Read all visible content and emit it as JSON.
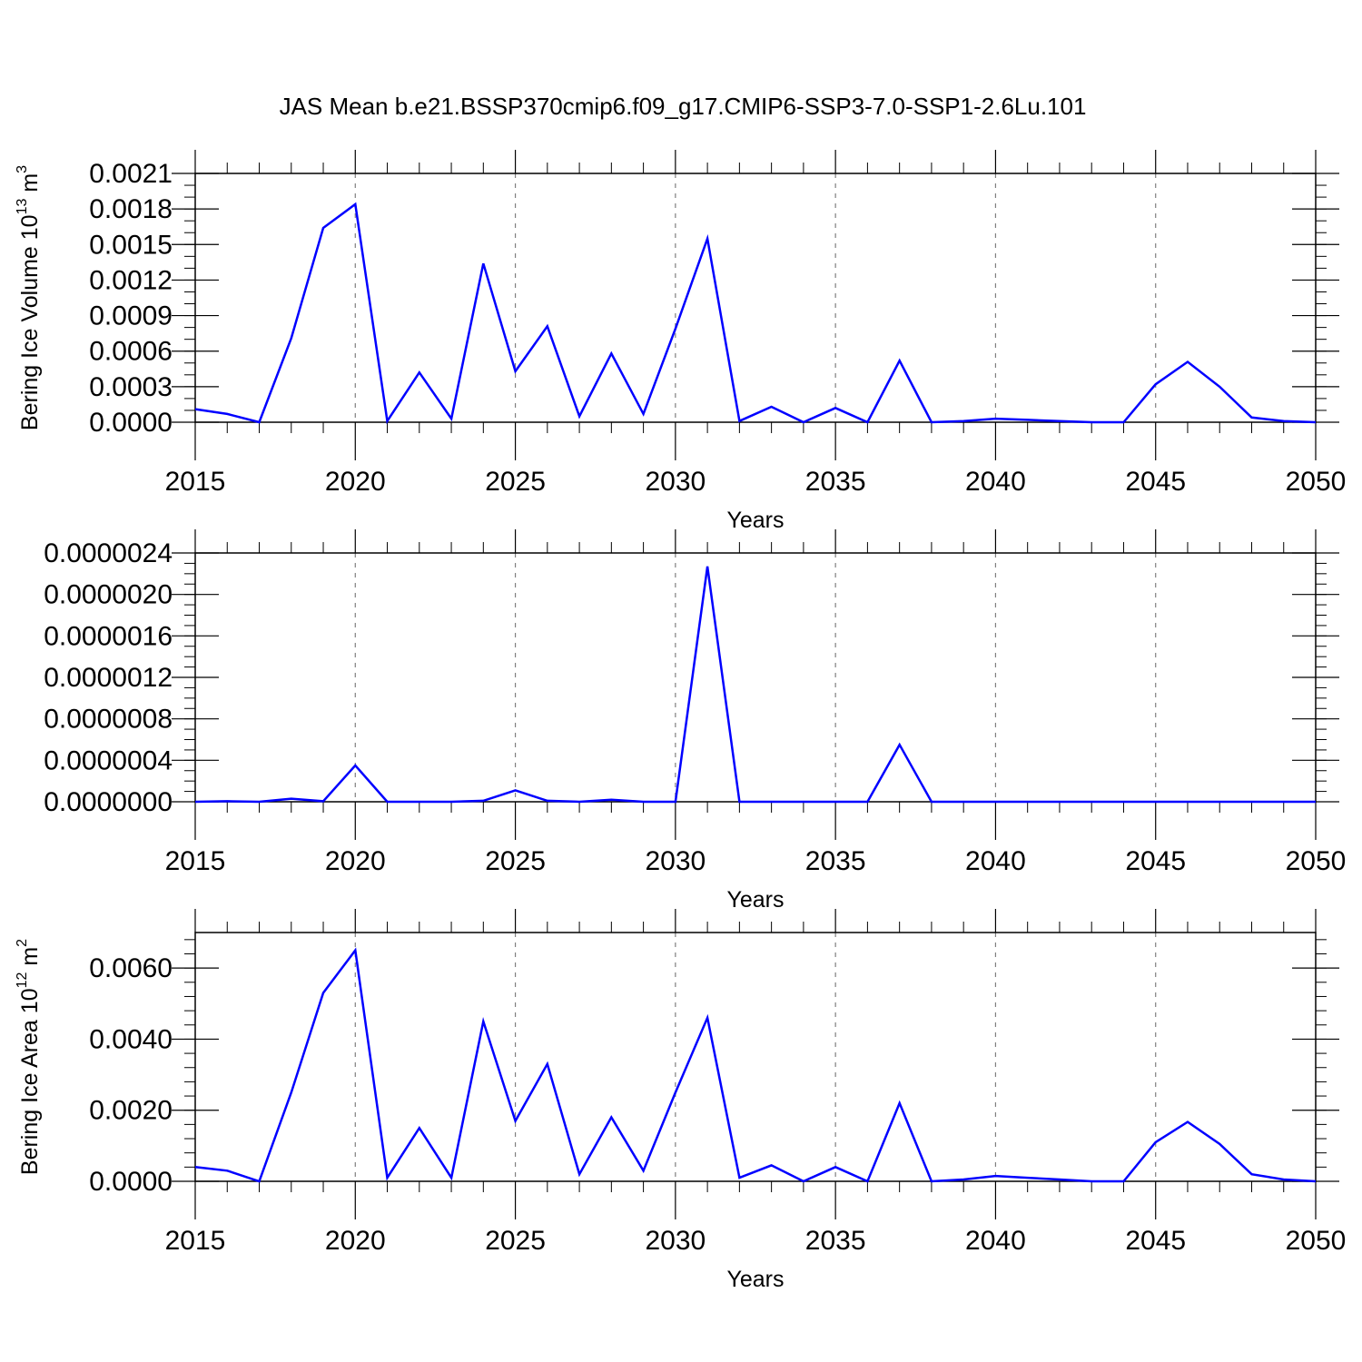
{
  "title": "JAS Mean b.e21.BSSP370cmip6.f09_g17.CMIP6-SSP3-7.0-SSP1-2.6Lu.101",
  "colors": {
    "line": "#0000ff",
    "frame": "#000000",
    "grid": "#808080"
  },
  "chart_data": [
    {
      "type": "line",
      "xlabel": "Years",
      "ylabel": {
        "text": "Bering Ice Volume 10",
        "sup": "13",
        "unit": " m",
        "unit_sup": "3"
      },
      "xlim": [
        2015,
        2050
      ],
      "ylim": [
        0,
        0.0021
      ],
      "x_ticks": [
        "2015",
        "2020",
        "2025",
        "2030",
        "2035",
        "2040",
        "2045",
        "2050"
      ],
      "y_ticks": [
        "0.0000",
        "0.0003",
        "0.0006",
        "0.0009",
        "0.0012",
        "0.0015",
        "0.0018",
        "0.0021"
      ],
      "y_minor_step": 0.0001,
      "grid": "dashed vertical at major x ticks",
      "x": [
        2015,
        2016,
        2017,
        2018,
        2019,
        2020,
        2021,
        2022,
        2023,
        2024,
        2025,
        2026,
        2027,
        2028,
        2029,
        2030,
        2031,
        2032,
        2033,
        2034,
        2035,
        2036,
        2037,
        2038,
        2039,
        2040,
        2041,
        2042,
        2043,
        2044,
        2045,
        2046,
        2047,
        2048,
        2049,
        2050
      ],
      "values": [
        0.00011,
        7e-05,
        0.0,
        0.00071,
        0.00164,
        0.00184,
        1e-05,
        0.00042,
        3e-05,
        0.00134,
        0.00043,
        0.00081,
        5e-05,
        0.00058,
        7e-05,
        0.00079,
        0.00155,
        1e-05,
        0.00013,
        0.0,
        0.00012,
        0.0,
        0.00052,
        0.0,
        1e-05,
        3e-05,
        2e-05,
        1e-05,
        0.0,
        0.0,
        0.00032,
        0.00051,
        0.0003,
        4e-05,
        1e-05,
        0.0
      ]
    },
    {
      "type": "line",
      "xlabel": "Years",
      "ylabel": null,
      "xlim": [
        2015,
        2050
      ],
      "ylim": [
        0,
        2.4e-06
      ],
      "x_ticks": [
        "2015",
        "2020",
        "2025",
        "2030",
        "2035",
        "2040",
        "2045",
        "2050"
      ],
      "y_ticks": [
        "0.0000000",
        "0.0000004",
        "0.0000008",
        "0.0000012",
        "0.0000016",
        "0.0000020",
        "0.0000024"
      ],
      "y_minor_step": 1e-07,
      "grid": "dashed vertical at major x ticks",
      "x": [
        2015,
        2016,
        2017,
        2018,
        2019,
        2020,
        2021,
        2022,
        2023,
        2024,
        2025,
        2026,
        2027,
        2028,
        2029,
        2030,
        2031,
        2032,
        2033,
        2034,
        2035,
        2036,
        2037,
        2038,
        2039,
        2040,
        2041,
        2042,
        2043,
        2044,
        2045,
        2046,
        2047,
        2048,
        2049,
        2050
      ],
      "values": [
        0.0,
        5e-09,
        0.0,
        3e-08,
        5e-09,
        3.5e-07,
        0.0,
        0.0,
        0.0,
        1e-08,
        1.1e-07,
        1e-08,
        0.0,
        2e-08,
        0.0,
        0.0,
        2.27e-06,
        0.0,
        0.0,
        0.0,
        0.0,
        0.0,
        5.5e-07,
        0.0,
        0.0,
        0.0,
        0.0,
        0.0,
        0.0,
        0.0,
        0.0,
        0.0,
        0.0,
        0.0,
        0.0,
        0.0
      ]
    },
    {
      "type": "line",
      "xlabel": "Years",
      "ylabel": {
        "text": "Bering Ice Area 10",
        "sup": "12",
        "unit": " m",
        "unit_sup": "2"
      },
      "xlim": [
        2015,
        2050
      ],
      "ylim": [
        0,
        0.007
      ],
      "x_ticks": [
        "2015",
        "2020",
        "2025",
        "2030",
        "2035",
        "2040",
        "2045",
        "2050"
      ],
      "y_ticks": [
        "0.0000",
        "0.0020",
        "0.0040",
        "0.0060"
      ],
      "y_minor_step": 0.0004,
      "grid": "dashed vertical at major x ticks",
      "x": [
        2015,
        2016,
        2017,
        2018,
        2019,
        2020,
        2021,
        2022,
        2023,
        2024,
        2025,
        2026,
        2027,
        2028,
        2029,
        2030,
        2031,
        2032,
        2033,
        2034,
        2035,
        2036,
        2037,
        2038,
        2039,
        2040,
        2041,
        2042,
        2043,
        2044,
        2045,
        2046,
        2047,
        2048,
        2049,
        2050
      ],
      "values": [
        0.0004,
        0.0003,
        0.0,
        0.0025,
        0.0053,
        0.0065,
        0.0001,
        0.0015,
        0.0001,
        0.0045,
        0.0017,
        0.0033,
        0.0002,
        0.0018,
        0.0003,
        0.0025,
        0.0046,
        0.0001,
        0.00045,
        0.0,
        0.0004,
        0.0,
        0.0022,
        0.0,
        5e-05,
        0.00015,
        0.0001,
        5e-05,
        0.0,
        0.0,
        0.0011,
        0.00167,
        0.00105,
        0.0002,
        5e-05,
        0.0
      ]
    }
  ]
}
